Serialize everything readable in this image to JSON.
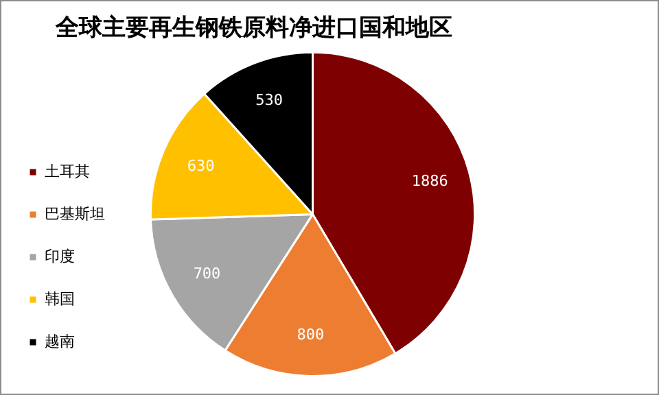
{
  "chart_data": {
    "type": "pie",
    "title": "全球主要再生钢铁原料净进口国和地区",
    "categories": [
      "土耳其",
      "巴基斯坦",
      "印度",
      "韩国",
      "越南"
    ],
    "values": [
      1886,
      800,
      700,
      630,
      530
    ],
    "colors": [
      "#7f0000",
      "#ed7d31",
      "#a5a5a5",
      "#ffc000",
      "#000000"
    ],
    "data_labels": true,
    "legend": "left"
  }
}
